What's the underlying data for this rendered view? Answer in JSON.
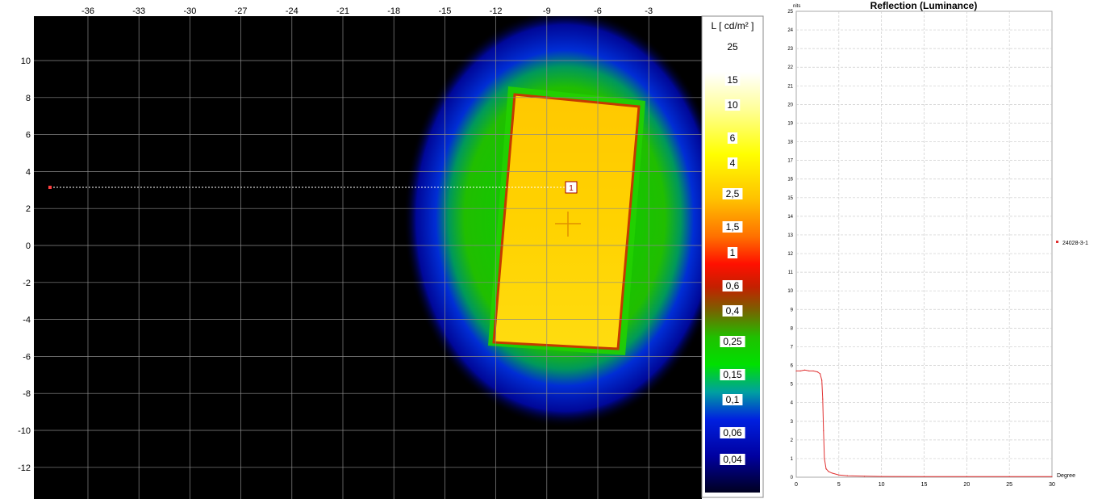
{
  "heatmap": {
    "top_ticks": [
      "-36",
      "-33",
      "-30",
      "-27",
      "-24",
      "-21",
      "-18",
      "-15",
      "-12",
      "-9",
      "-6",
      "-3"
    ],
    "left_ticks": [
      "10",
      "8",
      "6",
      "4",
      "2",
      "0",
      "-2",
      "-4",
      "-6",
      "-8",
      "-10",
      "-12"
    ],
    "marker_label": "1",
    "colors": {
      "background": "#000000",
      "grid": "#8a8a8a",
      "panel": "#ffd400",
      "panel_edge": "#c43a00",
      "halo_green": "#18c800",
      "halo_blue": "#0010c8",
      "profile_line": "#ffffff"
    }
  },
  "colorbar": {
    "title": "L [ cd/m² ]",
    "labels": [
      "25",
      "15",
      "10",
      "6",
      "4",
      "2,5",
      "1,5",
      "1",
      "0,6",
      "0,4",
      "0,25",
      "0,15",
      "0,1",
      "0,06",
      "0,04"
    ]
  },
  "chart_data": {
    "type": "line",
    "title": "Reflection (Luminance)",
    "ylabel": "nits",
    "xlabel": "Degree",
    "xlim": [
      0,
      30
    ],
    "ylim": [
      0,
      25
    ],
    "x_ticks": [
      0,
      5,
      10,
      15,
      20,
      25,
      30
    ],
    "y_ticks": [
      0,
      1,
      2,
      3,
      4,
      5,
      6,
      7,
      8,
      9,
      10,
      11,
      12,
      13,
      14,
      15,
      16,
      17,
      18,
      19,
      20,
      21,
      22,
      23,
      24,
      25
    ],
    "grid": true,
    "legend_position": "right",
    "series": [
      {
        "name": "24028-3-1",
        "color": "#e03030",
        "x": [
          0,
          0.5,
          1,
          1.5,
          2,
          2.5,
          2.8,
          3.0,
          3.1,
          3.2,
          3.3,
          3.5,
          3.8,
          4.2,
          5,
          6,
          8,
          10,
          15,
          20,
          25,
          30
        ],
        "y": [
          5.7,
          5.7,
          5.75,
          5.7,
          5.7,
          5.65,
          5.55,
          5.2,
          4.2,
          2.5,
          1.0,
          0.45,
          0.3,
          0.22,
          0.12,
          0.08,
          0.05,
          0.04,
          0.03,
          0.03,
          0.03,
          0.03
        ]
      }
    ]
  }
}
